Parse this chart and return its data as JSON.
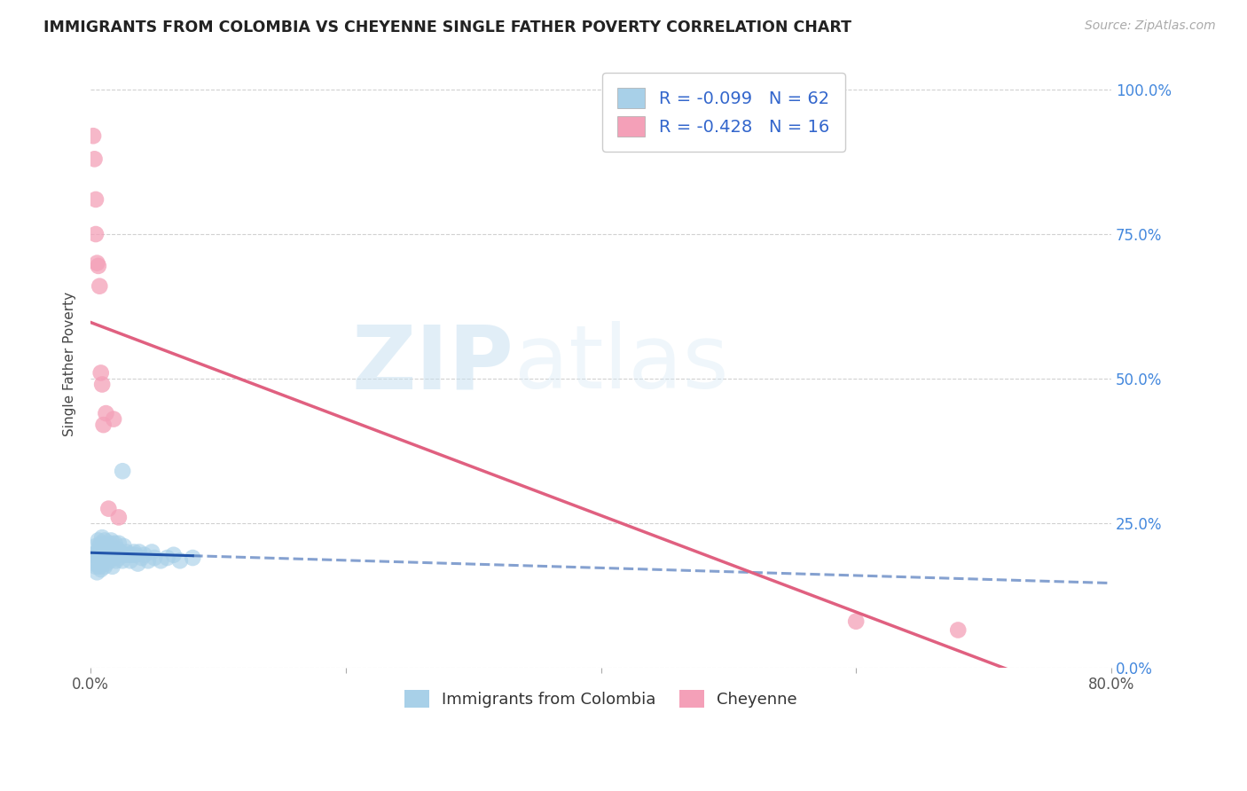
{
  "title": "IMMIGRANTS FROM COLOMBIA VS CHEYENNE SINGLE FATHER POVERTY CORRELATION CHART",
  "source": "Source: ZipAtlas.com",
  "ylabel": "Single Father Poverty",
  "legend_label_blue": "Immigrants from Colombia",
  "legend_label_pink": "Cheyenne",
  "r_blue": -0.099,
  "n_blue": 62,
  "r_pink": -0.428,
  "n_pink": 16,
  "xlim": [
    0.0,
    0.8
  ],
  "ylim": [
    0.0,
    1.05
  ],
  "yticks": [
    0.0,
    0.25,
    0.5,
    0.75,
    1.0
  ],
  "color_blue": "#a8d0e8",
  "color_pink": "#f4a0b8",
  "line_color_blue": "#2255aa",
  "line_color_pink": "#e06080",
  "background_color": "#ffffff",
  "watermark_zip": "ZIP",
  "watermark_atlas": "atlas",
  "grid_color": "#cccccc",
  "blue_points_x": [
    0.002,
    0.003,
    0.004,
    0.004,
    0.005,
    0.005,
    0.005,
    0.006,
    0.006,
    0.007,
    0.007,
    0.008,
    0.008,
    0.008,
    0.009,
    0.009,
    0.01,
    0.01,
    0.011,
    0.011,
    0.012,
    0.012,
    0.013,
    0.013,
    0.014,
    0.015,
    0.015,
    0.016,
    0.016,
    0.017,
    0.018,
    0.018,
    0.019,
    0.02,
    0.02,
    0.021,
    0.022,
    0.022,
    0.023,
    0.024,
    0.025,
    0.026,
    0.027,
    0.028,
    0.03,
    0.031,
    0.032,
    0.034,
    0.035,
    0.037,
    0.038,
    0.04,
    0.042,
    0.045,
    0.048,
    0.05,
    0.055,
    0.06,
    0.065,
    0.07,
    0.08,
    0.025
  ],
  "blue_points_y": [
    0.195,
    0.18,
    0.21,
    0.175,
    0.2,
    0.185,
    0.165,
    0.22,
    0.195,
    0.175,
    0.21,
    0.19,
    0.215,
    0.17,
    0.225,
    0.185,
    0.195,
    0.21,
    0.22,
    0.175,
    0.195,
    0.18,
    0.21,
    0.19,
    0.2,
    0.215,
    0.185,
    0.195,
    0.22,
    0.175,
    0.2,
    0.19,
    0.215,
    0.195,
    0.185,
    0.205,
    0.215,
    0.19,
    0.2,
    0.195,
    0.185,
    0.21,
    0.195,
    0.2,
    0.195,
    0.185,
    0.195,
    0.2,
    0.195,
    0.18,
    0.2,
    0.19,
    0.195,
    0.185,
    0.2,
    0.19,
    0.185,
    0.19,
    0.195,
    0.185,
    0.19,
    0.34
  ],
  "pink_points_x": [
    0.002,
    0.003,
    0.004,
    0.004,
    0.005,
    0.006,
    0.007,
    0.008,
    0.009,
    0.01,
    0.012,
    0.014,
    0.018,
    0.022,
    0.6,
    0.68
  ],
  "pink_points_y": [
    0.92,
    0.88,
    0.81,
    0.75,
    0.7,
    0.695,
    0.66,
    0.51,
    0.49,
    0.42,
    0.44,
    0.275,
    0.43,
    0.26,
    0.08,
    0.065
  ]
}
